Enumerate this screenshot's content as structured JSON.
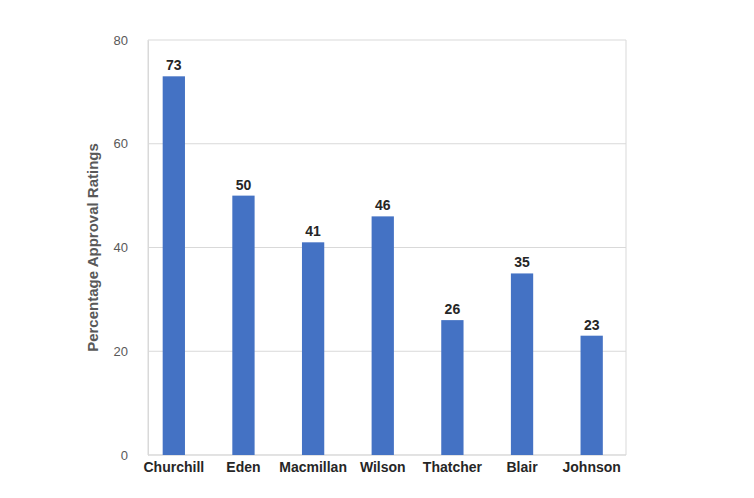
{
  "chart_data": {
    "type": "bar",
    "y_label": "Percentage Approval Ratings",
    "categories": [
      "Churchill",
      "Eden",
      "Macmillan",
      "Wilson",
      "Thatcher",
      "Blair",
      "Johnson"
    ],
    "values": [
      73,
      50,
      41,
      46,
      26,
      35,
      23
    ],
    "color": "#4472c4",
    "ylim": [
      0,
      80
    ],
    "yticks": [
      0,
      20,
      40,
      60,
      80
    ],
    "grid": true,
    "data_labels": true
  }
}
